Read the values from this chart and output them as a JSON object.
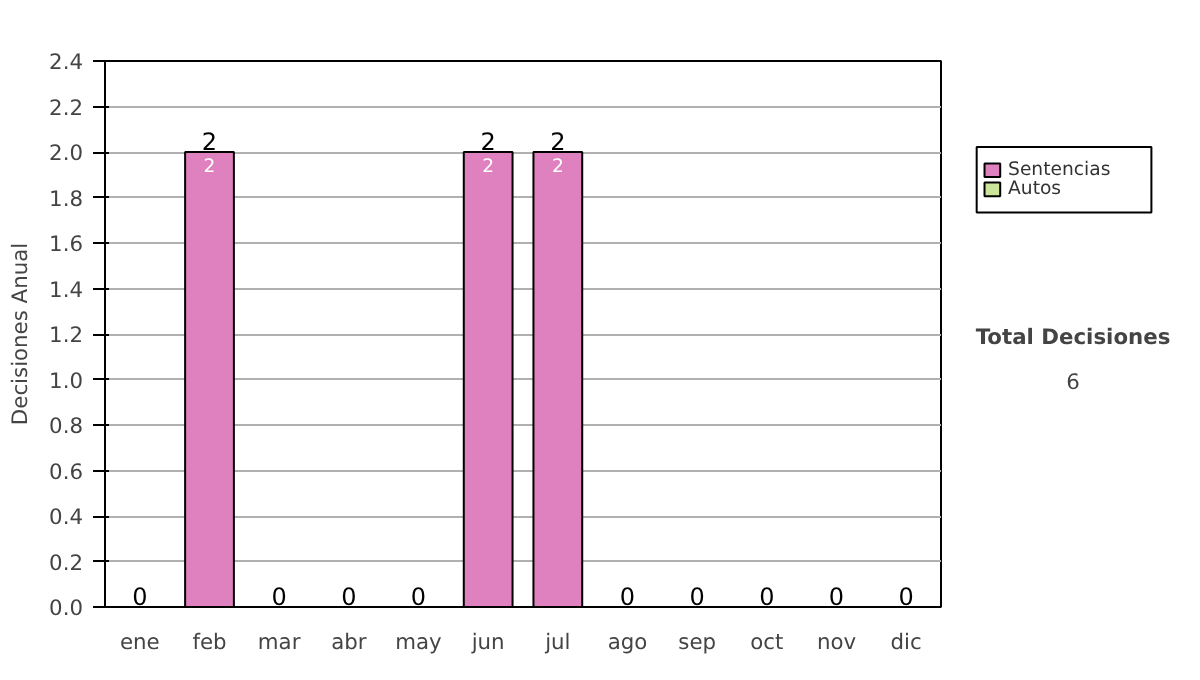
{
  "chart_data": {
    "type": "bar",
    "stacked": true,
    "ylabel": "Decisiones Anual",
    "categories": [
      "ene",
      "feb",
      "mar",
      "abr",
      "may",
      "jun",
      "jul",
      "ago",
      "sep",
      "oct",
      "nov",
      "dic"
    ],
    "series": [
      {
        "name": "Sentencias",
        "color": "#df80bf",
        "values": [
          0,
          2,
          0,
          0,
          0,
          2,
          2,
          0,
          0,
          0,
          0,
          0
        ],
        "value_labels": [
          null,
          "2",
          null,
          null,
          null,
          "2",
          "2",
          null,
          null,
          null,
          null,
          null
        ]
      },
      {
        "name": "Autos",
        "color": "#cce699",
        "values": [
          0,
          0,
          0,
          0,
          0,
          0,
          0,
          0,
          0,
          0,
          0,
          0
        ]
      }
    ],
    "totals": [
      "0",
      "2",
      "0",
      "0",
      "0",
      "2",
      "2",
      "0",
      "0",
      "0",
      "0",
      "0"
    ],
    "ylim": [
      0,
      2.4
    ],
    "yticks": [
      "0.0",
      "0.2",
      "0.4",
      "0.6",
      "0.8",
      "1.0",
      "1.2",
      "1.4",
      "1.6",
      "1.8",
      "2.0",
      "2.2",
      "2.4"
    ],
    "grid": "y",
    "legend": "right",
    "annotations": [
      "Total Decisiones",
      "6"
    ]
  }
}
